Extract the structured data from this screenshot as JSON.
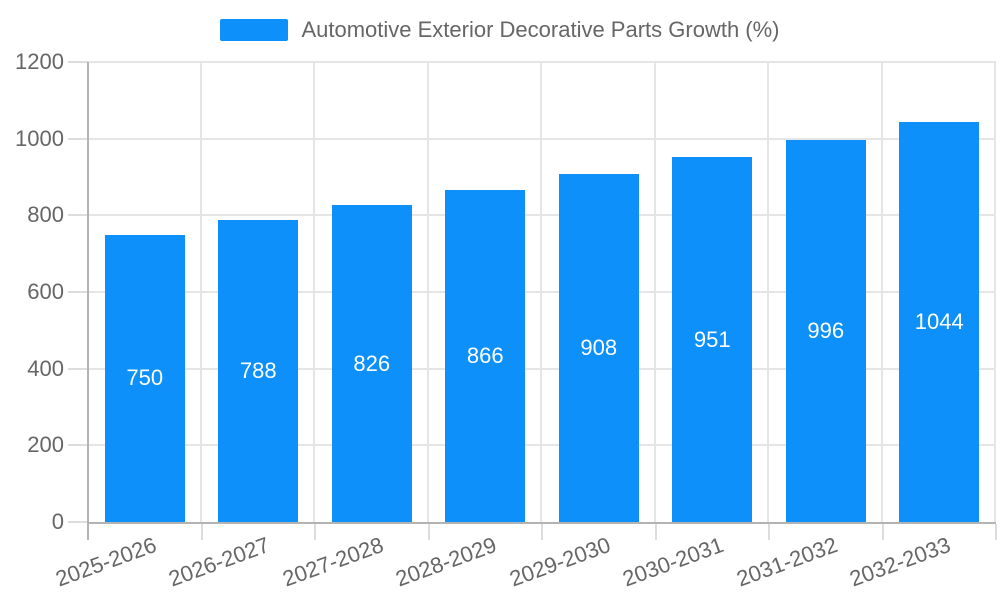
{
  "chart_data": {
    "type": "bar",
    "title": "Automotive Exterior Decorative Parts Growth (%)",
    "categories": [
      "2025-2026",
      "2026-2027",
      "2027-2028",
      "2028-2029",
      "2029-2030",
      "2030-2031",
      "2031-2032",
      "2032-2033"
    ],
    "values": [
      750,
      788,
      826,
      866,
      908,
      951,
      996,
      1044
    ],
    "xlabel": "",
    "ylabel": "",
    "ylim": [
      0,
      1200
    ],
    "ytick_step": 200,
    "yticks": [
      0,
      200,
      400,
      600,
      800,
      1000,
      1200
    ],
    "grid": true,
    "legend_position": "top-center",
    "value_labels_position": "inside-center",
    "x_label_rotation_deg": -20,
    "colors": {
      "bar": "#0d90fa",
      "value_label": "#ffffff",
      "axis_text": "#666666",
      "legend_text": "#666666",
      "gridline": "#e5e5e5",
      "tick": "#dcdcdc",
      "axis_line": "#b3b3b3",
      "background": "#ffffff"
    }
  }
}
